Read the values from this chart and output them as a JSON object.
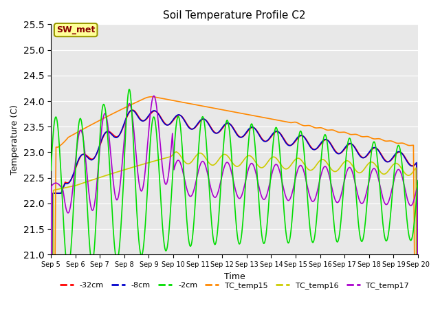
{
  "title": "Soil Temperature Profile C2",
  "xlabel": "Time",
  "ylabel": "Temperature (C)",
  "ylim": [
    21.0,
    25.5
  ],
  "series_colors": {
    "-32cm": "#ff0000",
    "-8cm": "#0000cc",
    "-2cm": "#00dd00",
    "TC_temp15": "#ff8800",
    "TC_temp16": "#cccc00",
    "TC_temp17": "#aa00cc"
  },
  "annotation_text": "SW_met",
  "annotation_bg": "#ffff99",
  "annotation_border": "#999900",
  "annotation_text_color": "#880000",
  "plot_bg": "#e8e8e8",
  "tick_labels": [
    "Sep 5",
    "Sep 6",
    "Sep 7",
    "Sep 8",
    "Sep 9",
    "Sep 10",
    "Sep 11",
    "Sep 12",
    "Sep 13",
    "Sep 14",
    "Sep 15",
    "Sep 16",
    "Sep 17",
    "Sep 18",
    "Sep 19",
    "Sep 20"
  ],
  "yticks": [
    21.0,
    21.5,
    22.0,
    22.5,
    23.0,
    23.5,
    24.0,
    24.5,
    25.0,
    25.5
  ]
}
